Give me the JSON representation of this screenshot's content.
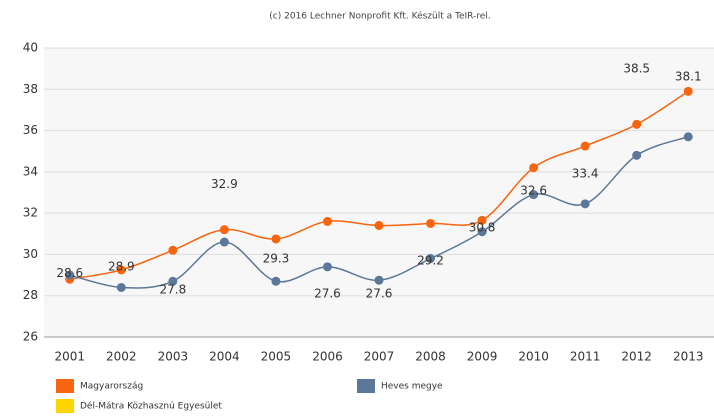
{
  "chart_data": {
    "type": "combo",
    "credit": "(c) 2016 Lechner Nonprofit Kft. Készült a TeIR-rel.",
    "categories": [
      "2001",
      "2002",
      "2003",
      "2004",
      "2005",
      "2006",
      "2007",
      "2008",
      "2009",
      "2010",
      "2011",
      "2012",
      "2013"
    ],
    "ylim": [
      26,
      40
    ],
    "yticks": [
      26,
      28,
      30,
      32,
      34,
      36,
      38,
      40
    ],
    "grid": true,
    "series": [
      {
        "name": "Magyarország",
        "type": "line",
        "color": "#f7650f",
        "values": [
          28.8,
          29.25,
          30.2,
          31.2,
          30.75,
          31.6,
          31.4,
          31.5,
          31.65,
          34.2,
          35.25,
          36.3,
          37.9
        ]
      },
      {
        "name": "Heves megye",
        "type": "line",
        "color": "#5d7799",
        "values": [
          29.0,
          28.4,
          28.7,
          30.6,
          28.7,
          29.4,
          28.75,
          29.8,
          31.1,
          32.9,
          32.45,
          34.8,
          35.7
        ]
      },
      {
        "name": "Dél-Mátra Közhasznú Egyesület",
        "type": "bar",
        "color": "#ffd500",
        "values": [
          28.6,
          28.9,
          27.8,
          32.9,
          29.3,
          27.6,
          27.6,
          29.2,
          30.8,
          32.6,
          33.4,
          38.5,
          38.1
        ]
      }
    ]
  }
}
